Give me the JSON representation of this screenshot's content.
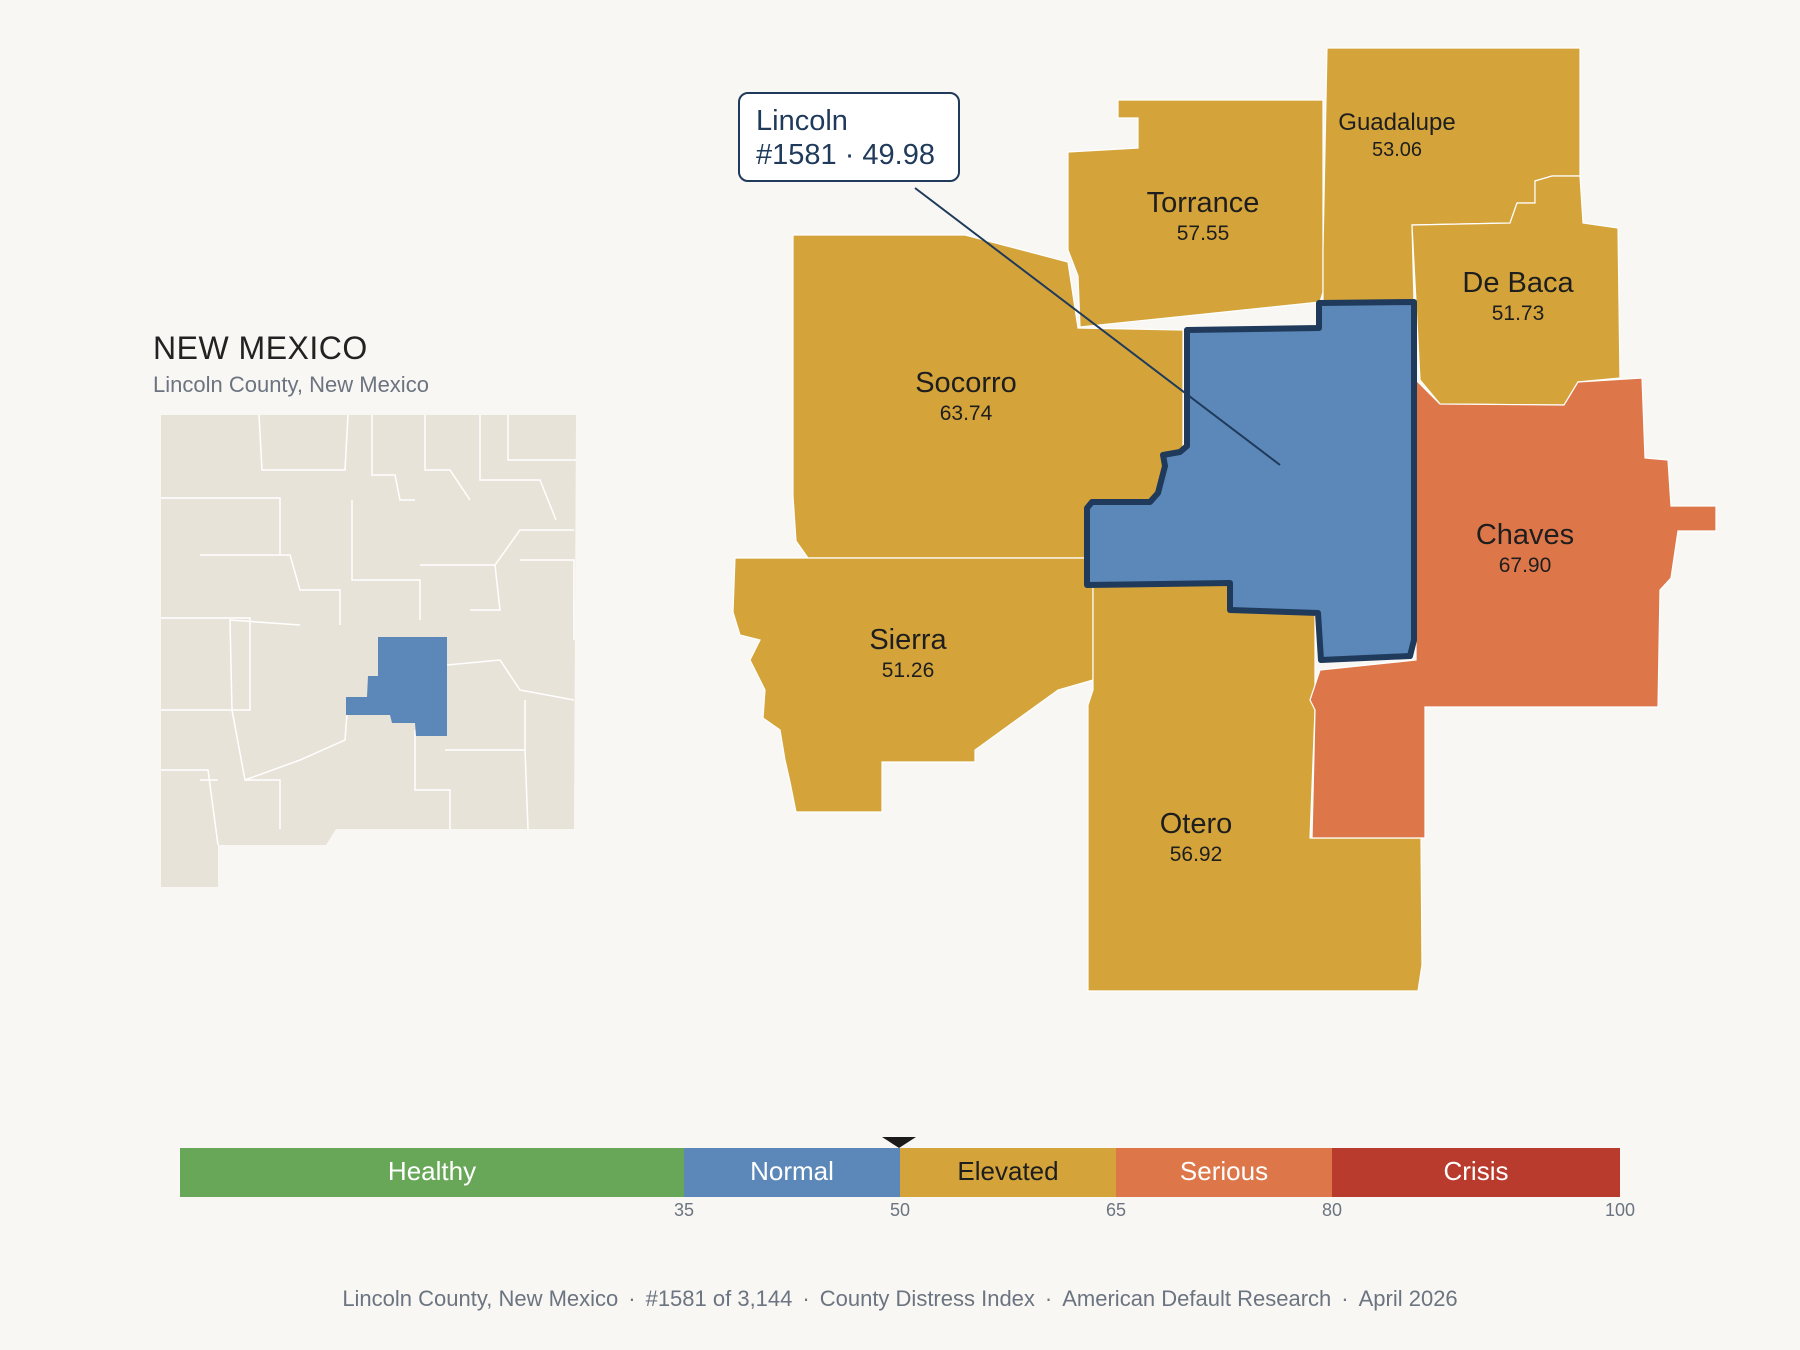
{
  "state": {
    "title": "NEW MEXICO",
    "subtitle": "Lincoln County, New Mexico"
  },
  "highlight": {
    "name": "Lincoln",
    "rank_score": "#1581 · 49.98"
  },
  "counties": [
    {
      "name": "Torrance",
      "score": "57.55",
      "category": "Elevated"
    },
    {
      "name": "Guadalupe",
      "score": "53.06",
      "category": "Elevated"
    },
    {
      "name": "De Baca",
      "score": "51.73",
      "category": "Elevated"
    },
    {
      "name": "Socorro",
      "score": "63.74",
      "category": "Elevated"
    },
    {
      "name": "Chaves",
      "score": "67.90",
      "category": "Serious"
    },
    {
      "name": "Sierra",
      "score": "51.26",
      "category": "Elevated"
    },
    {
      "name": "Otero",
      "score": "56.92",
      "category": "Elevated"
    }
  ],
  "legend": {
    "categories": [
      {
        "label": "Healthy",
        "from": 0,
        "to": 35,
        "color": "#69a758"
      },
      {
        "label": "Normal",
        "from": 35,
        "to": 50,
        "color": "#5b88b8"
      },
      {
        "label": "Elevated",
        "from": 50,
        "to": 65,
        "color": "#d4a43a"
      },
      {
        "label": "Serious",
        "from": 65,
        "to": 80,
        "color": "#dd774a"
      },
      {
        "label": "Crisis",
        "from": 80,
        "to": 100,
        "color": "#b93b2d"
      }
    ],
    "ticks": [
      "35",
      "50",
      "65",
      "80",
      "100"
    ],
    "marker_value": 49.98
  },
  "colors": {
    "normal": "#5b88b8",
    "elevated": "#d4a43a",
    "serious": "#dd774a",
    "inset_land": "#e8e3d8",
    "outline": "#1f3a5a"
  },
  "footer": {
    "location": "Lincoln County, New Mexico",
    "rank": "#1581 of 3,144",
    "index": "County Distress Index",
    "source": "American Default Research",
    "date": "April 2026"
  }
}
